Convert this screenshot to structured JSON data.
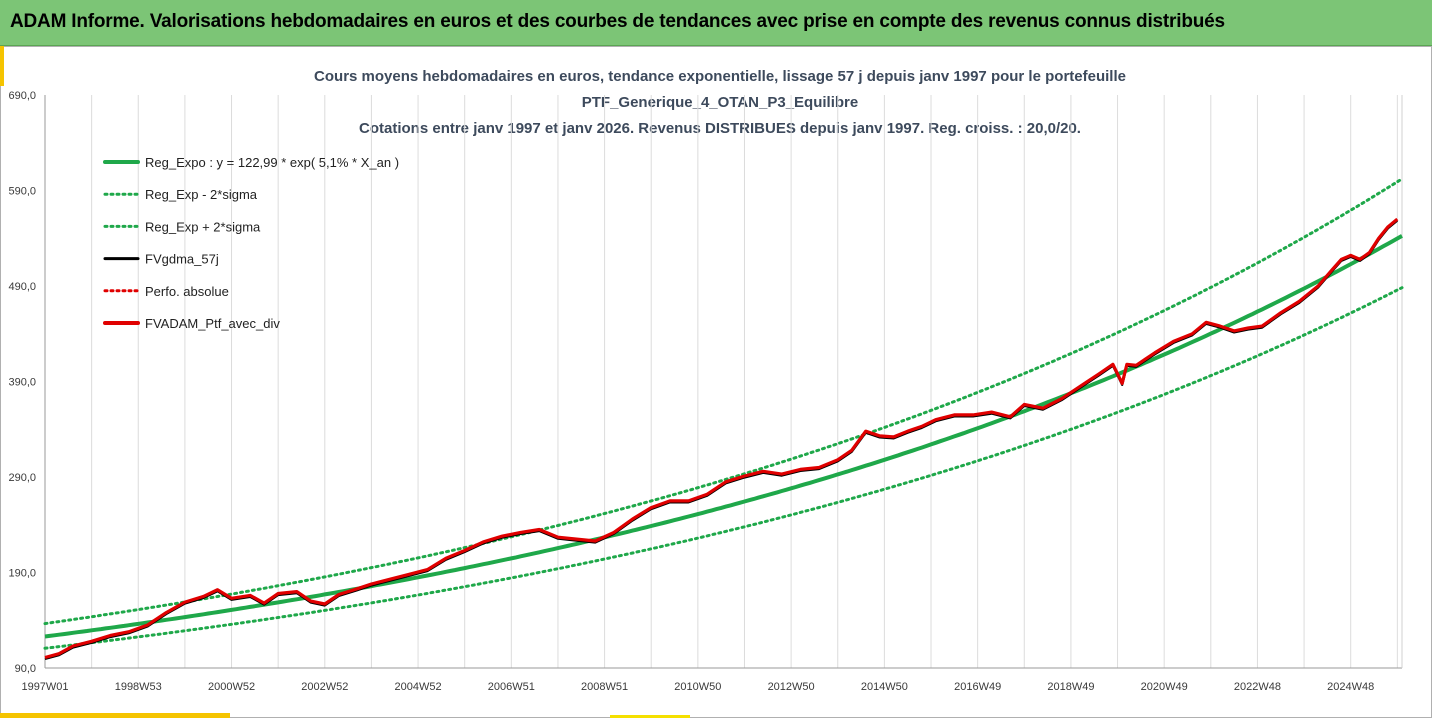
{
  "banner": {
    "title": "ADAM Informe. Valorisations hebdomadaires en euros et des courbes de tendances avec prise en compte des revenus connus distribués"
  },
  "colors": {
    "banner_bg": "#7cc576",
    "accent": "#f5c400",
    "trend": "#1fa84a",
    "smooth": "#000000",
    "series": "#e00000"
  },
  "chart_data": {
    "type": "line",
    "title": [
      "Cours moyens hebdomadaires  en euros, tendance exponentielle, lissage 57 j depuis janv 1997 pour le portefeuille",
      "PTF_Generique_4_OTAN_P3_Equilibre",
      "Cotations entre janv 1997 et janv 2026. Revenus DISTRIBUES depuis janv 1997. Reg. croiss. : 20,0/20."
    ],
    "ylim": [
      90,
      690
    ],
    "yticks": [
      "90,0",
      "190,0",
      "290,0",
      "390,0",
      "490,0",
      "590,0",
      "690,0"
    ],
    "yticks_values": [
      90,
      190,
      290,
      390,
      490,
      590,
      690
    ],
    "xlim": [
      1997.0,
      2026.1
    ],
    "xticks": [
      "1997W01",
      "1998W53",
      "2000W52",
      "2002W52",
      "2004W52",
      "2006W51",
      "2008W51",
      "2010W50",
      "2012W50",
      "2014W50",
      "2016W49",
      "2018W49",
      "2020W49",
      "2022W48",
      "2024W48"
    ],
    "xticks_values": [
      1997.0,
      1999.0,
      2001.0,
      2003.0,
      2005.0,
      2007.0,
      2009.0,
      2011.0,
      2013.0,
      2015.0,
      2017.0,
      2019.0,
      2021.0,
      2023.0,
      2025.0
    ],
    "grid": "vertical",
    "legend_position": "top-left",
    "regression": {
      "a": 122.99,
      "rate": 0.051,
      "sigma_upper_factor": 1.11,
      "sigma_lower_factor": 0.9
    },
    "series": [
      {
        "name": "Reg_Expo : y = 122,99 * exp( 5,1% *  X_an )",
        "style": "trend",
        "values": "computed"
      },
      {
        "name": "Reg_Exp - 2*sigma",
        "style": "dotted-green",
        "values": "computed"
      },
      {
        "name": "Reg_Exp + 2*sigma",
        "style": "dotted-green",
        "values": "computed"
      },
      {
        "name": "FVgdma_57j",
        "style": "black"
      },
      {
        "name": "Perfo. absolue",
        "style": "dotted-red"
      },
      {
        "name": "FVADAM_Ptf_avec_div",
        "style": "red",
        "x": [
          1997.0,
          1997.3,
          1997.6,
          1998.0,
          1998.4,
          1998.8,
          1999.2,
          1999.6,
          2000.0,
          2000.4,
          2000.7,
          2001.0,
          2001.4,
          2001.7,
          2002.0,
          2002.4,
          2002.7,
          2003.0,
          2003.3,
          2003.7,
          2004.0,
          2004.4,
          2004.8,
          2005.2,
          2005.6,
          2006.0,
          2006.4,
          2006.8,
          2007.2,
          2007.6,
          2008.0,
          2008.4,
          2008.8,
          2009.2,
          2009.6,
          2010.0,
          2010.4,
          2010.8,
          2011.2,
          2011.6,
          2012.0,
          2012.4,
          2012.8,
          2013.2,
          2013.6,
          2014.0,
          2014.3,
          2014.6,
          2014.9,
          2015.2,
          2015.5,
          2015.8,
          2016.1,
          2016.5,
          2016.9,
          2017.3,
          2017.7,
          2018.0,
          2018.4,
          2018.8,
          2019.2,
          2019.6,
          2019.9,
          2020.1,
          2020.2,
          2020.4,
          2020.8,
          2021.2,
          2021.6,
          2021.9,
          2022.2,
          2022.5,
          2022.8,
          2023.1,
          2023.5,
          2023.9,
          2024.3,
          2024.6,
          2024.8,
          2025.0,
          2025.2,
          2025.4,
          2025.6,
          2025.8,
          2026.0
        ],
        "values": [
          101,
          105,
          113,
          118,
          124,
          128,
          135,
          148,
          159,
          165,
          172,
          163,
          166,
          158,
          168,
          170,
          160,
          157,
          167,
          173,
          178,
          183,
          188,
          193,
          205,
          213,
          222,
          228,
          232,
          235,
          227,
          225,
          223,
          232,
          246,
          258,
          265,
          265,
          272,
          285,
          291,
          296,
          293,
          298,
          300,
          308,
          318,
          338,
          333,
          332,
          338,
          343,
          350,
          355,
          355,
          358,
          353,
          366,
          362,
          372,
          385,
          398,
          408,
          388,
          408,
          407,
          420,
          432,
          440,
          452,
          448,
          443,
          446,
          448,
          462,
          474,
          490,
          507,
          518,
          522,
          518,
          525,
          540,
          552,
          560
        ]
      }
    ]
  }
}
